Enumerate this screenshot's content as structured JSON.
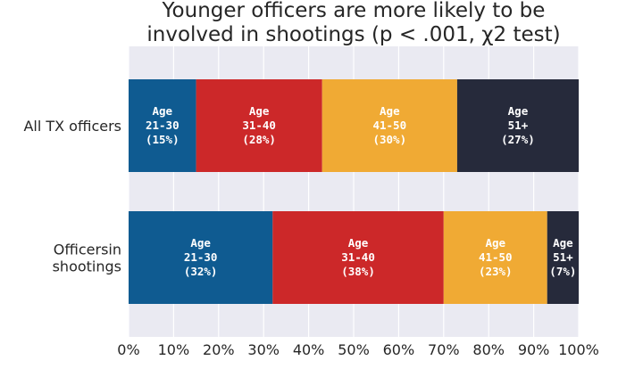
{
  "chart_data": {
    "type": "bar",
    "orientation": "horizontal",
    "stacked": true,
    "title_lines": [
      "Younger officers are more likely to be",
      "involved in shootings (p < .001, χ2 test)"
    ],
    "categories": [
      {
        "lines": [
          "All TX officers"
        ]
      },
      {
        "lines": [
          "Officersin",
          "shootings"
        ]
      }
    ],
    "series": [
      {
        "name": "Age 21-30",
        "label_lines": [
          "Age",
          "21-30"
        ],
        "color": "#0f5b91",
        "values": [
          15,
          32
        ]
      },
      {
        "name": "Age 31-40",
        "label_lines": [
          "Age",
          "31-40"
        ],
        "color": "#cc2829",
        "values": [
          28,
          38
        ]
      },
      {
        "name": "Age 41-50",
        "label_lines": [
          "Age",
          "41-50"
        ],
        "color": "#f0aa34",
        "values": [
          30,
          23
        ]
      },
      {
        "name": "Age 51+",
        "label_lines": [
          "Age",
          "51+"
        ],
        "color": "#262a3b",
        "values": [
          27,
          7
        ]
      }
    ],
    "xlim": [
      0,
      100
    ],
    "xticks": [
      "0%",
      "10%",
      "20%",
      "30%",
      "40%",
      "50%",
      "60%",
      "70%",
      "80%",
      "90%",
      "100%"
    ],
    "grid": true,
    "background": "#eaeaf2"
  }
}
